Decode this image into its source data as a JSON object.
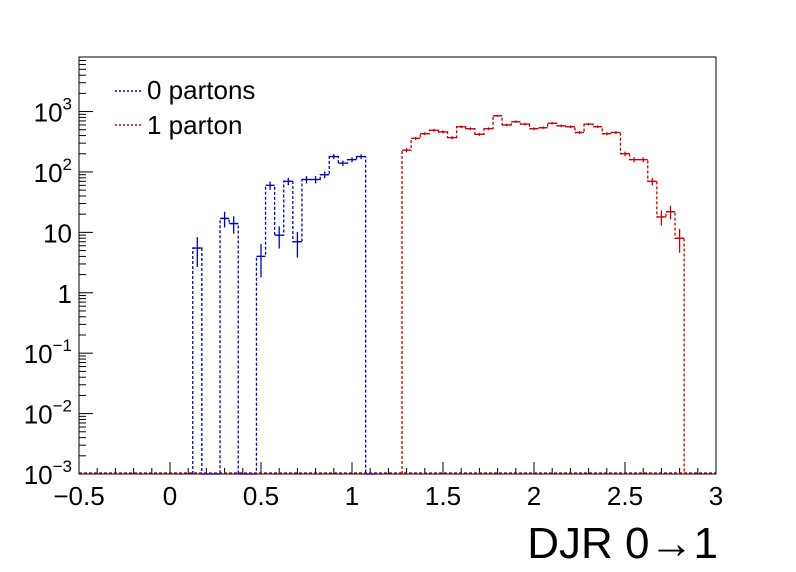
{
  "chart_data": {
    "type": "histogram",
    "xlabel": "DJR 0→1",
    "ylabel": "",
    "xlim": [
      -0.5,
      3
    ],
    "ylim": [
      0.001,
      8000
    ],
    "yscale": "log",
    "grid": false,
    "legend_placement": "top-left",
    "x_ticks": [
      {
        "value": -0.5,
        "label": "−0.5"
      },
      {
        "value": 0,
        "label": "0"
      },
      {
        "value": 0.5,
        "label": "0.5"
      },
      {
        "value": 1,
        "label": "1"
      },
      {
        "value": 1.5,
        "label": "1.5"
      },
      {
        "value": 2,
        "label": "2"
      },
      {
        "value": 2.5,
        "label": "2.5"
      },
      {
        "value": 3,
        "label": "3"
      }
    ],
    "y_ticks": [
      {
        "value": 0.001,
        "base": "10",
        "exp": "−3"
      },
      {
        "value": 0.01,
        "base": "10",
        "exp": "−2"
      },
      {
        "value": 0.1,
        "base": "10",
        "exp": "−1"
      },
      {
        "value": 1,
        "base": "1",
        "exp": ""
      },
      {
        "value": 10,
        "base": "10",
        "exp": ""
      },
      {
        "value": 100,
        "base": "10",
        "exp": "2"
      },
      {
        "value": 1000,
        "base": "10",
        "exp": "3"
      }
    ],
    "bin_edges_start": 0.125,
    "bin_width": 0.05,
    "series": [
      {
        "name": "0 partons",
        "color": "#0000cc",
        "start": 0.125,
        "values": [
          5.5,
          0,
          0,
          17,
          14,
          0,
          0,
          4,
          60,
          9,
          70,
          7,
          75,
          75,
          90,
          180,
          140,
          160,
          180,
          0
        ]
      },
      {
        "name": "1 parton",
        "color": "#cc0000",
        "start": 1.275,
        "values": [
          230,
          360,
          430,
          490,
          460,
          370,
          560,
          520,
          420,
          520,
          850,
          600,
          680,
          620,
          520,
          540,
          640,
          580,
          560,
          450,
          620,
          560,
          430,
          450,
          200,
          160,
          160,
          70,
          18,
          22,
          8
        ]
      }
    ]
  }
}
